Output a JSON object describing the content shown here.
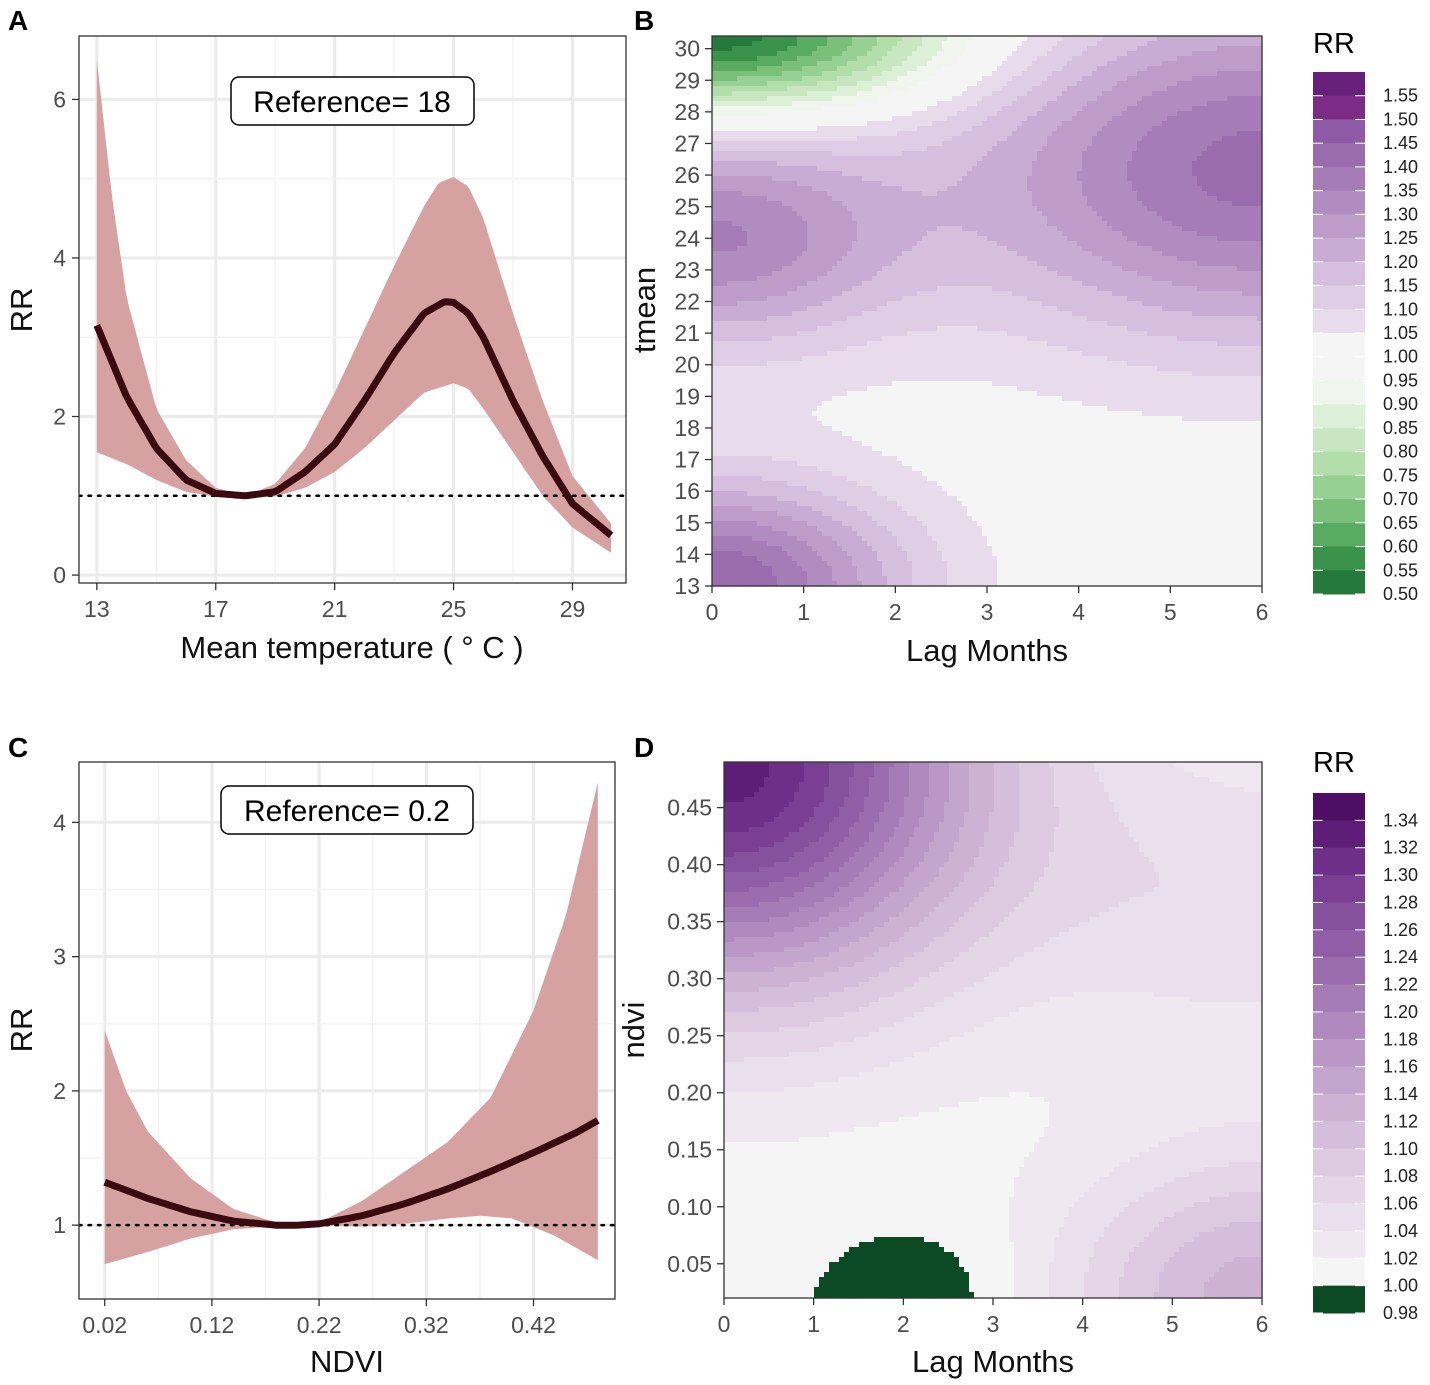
{
  "panels": {
    "A": {
      "label": "A",
      "chart_data": {
        "type": "line",
        "title": "",
        "annotation": "Reference= 18",
        "xlabel": "Mean temperature ( ° C )",
        "ylabel": "RR",
        "xlim": [
          12.4,
          30.8
        ],
        "ylim": [
          -0.1,
          6.8
        ],
        "x_ticks": [
          13,
          17,
          21,
          25,
          29
        ],
        "y_ticks": [
          0,
          2,
          4,
          6
        ],
        "x_tick_labels": [
          "13",
          "17",
          "21",
          "25",
          "29"
        ],
        "y_tick_labels": [
          "0",
          "2",
          "4",
          "6"
        ],
        "reference_line_y": 1,
        "series": [
          {
            "name": "RR",
            "x": [
              13,
              14,
              15,
              16,
              17,
              18,
              19,
              20,
              21,
              22,
              23,
              24,
              24.7,
              25,
              25.5,
              26,
              27,
              28,
              29,
              30.3
            ],
            "values": [
              3.15,
              2.25,
              1.6,
              1.2,
              1.03,
              1.0,
              1.05,
              1.3,
              1.65,
              2.2,
              2.8,
              3.3,
              3.45,
              3.44,
              3.3,
              3.0,
              2.2,
              1.5,
              0.9,
              0.5
            ]
          },
          {
            "name": "upper 95% CI",
            "x": [
              13,
              13.5,
              14,
              15,
              16,
              17,
              18,
              19,
              20,
              21,
              22,
              23,
              24,
              24.5,
              25,
              25.5,
              26,
              27,
              28,
              29,
              30.3
            ],
            "values": [
              6.5,
              4.8,
              3.5,
              2.1,
              1.45,
              1.1,
              1.0,
              1.15,
              1.6,
              2.3,
              3.1,
              3.9,
              4.65,
              4.95,
              5.02,
              4.9,
              4.5,
              3.3,
              2.2,
              1.25,
              0.65
            ]
          },
          {
            "name": "lower 95% CI",
            "x": [
              13,
              14,
              15,
              16,
              17,
              18,
              19,
              20,
              21,
              22,
              23,
              24,
              25,
              25.5,
              26,
              27,
              28,
              29,
              30.3
            ],
            "values": [
              1.55,
              1.4,
              1.2,
              1.05,
              0.99,
              0.98,
              0.99,
              1.1,
              1.3,
              1.6,
              1.95,
              2.3,
              2.42,
              2.35,
              2.1,
              1.55,
              1.0,
              0.6,
              0.28
            ]
          }
        ]
      }
    },
    "B": {
      "label": "B",
      "chart_data": {
        "type": "heatmap",
        "title": "",
        "xlabel": "Lag Months",
        "ylabel": "tmean",
        "xlim": [
          0,
          6
        ],
        "ylim": [
          13,
          30.4
        ],
        "x_ticks": [
          0,
          1,
          2,
          3,
          4,
          5,
          6
        ],
        "y_ticks": [
          13,
          14,
          15,
          16,
          17,
          18,
          19,
          20,
          21,
          22,
          23,
          24,
          25,
          26,
          27,
          28,
          29,
          30
        ],
        "x_tick_labels": [
          "0",
          "1",
          "2",
          "3",
          "4",
          "5",
          "6"
        ],
        "y_tick_labels": [
          "13",
          "14",
          "15",
          "16",
          "17",
          "18",
          "19",
          "20",
          "21",
          "22",
          "23",
          "24",
          "25",
          "26",
          "27",
          "28",
          "29",
          "30"
        ],
        "legend_title": "RR",
        "legend_breaks": [
          0.5,
          0.55,
          0.6,
          0.65,
          0.7,
          0.75,
          0.8,
          0.85,
          0.9,
          0.95,
          1.0,
          1.05,
          1.1,
          1.15,
          1.2,
          1.25,
          1.3,
          1.35,
          1.4,
          1.45,
          1.5,
          1.55
        ],
        "legend_labels": [
          "1.55",
          "1.50",
          "1.45",
          "1.40",
          "1.35",
          "1.30",
          "1.25",
          "1.20",
          "1.15",
          "1.10",
          "1.05",
          "1.00",
          "0.95",
          "0.90",
          "0.85",
          "0.80",
          "0.75",
          "0.70",
          "0.65",
          "0.60",
          "0.55",
          "0.50"
        ],
        "features": [
          {
            "center": [
              0,
              30.4
            ],
            "peak_rr": 0.5,
            "spread_lag": 2.6,
            "spread_var": 2.4,
            "note": "green dip at high tmean, short lag"
          },
          {
            "center": [
              0,
              24
            ],
            "peak_rr": 1.34,
            "spread_lag": 2.0,
            "spread_var": 3.5
          },
          {
            "center": [
              0,
              13
            ],
            "peak_rr": 1.45,
            "spread_lag": 2.1,
            "spread_var": 3.3
          },
          {
            "center": [
              6,
              26.2
            ],
            "peak_rr": 1.42,
            "spread_lag": 3.4,
            "spread_var": 5.5
          }
        ]
      }
    },
    "C": {
      "label": "C",
      "chart_data": {
        "type": "line",
        "title": "",
        "annotation": "Reference= 0.2",
        "xlabel": "NDVI",
        "ylabel": "RR",
        "xlim": [
          -0.004,
          0.496
        ],
        "ylim": [
          0.45,
          4.45
        ],
        "x_ticks": [
          0.02,
          0.12,
          0.22,
          0.32,
          0.42
        ],
        "y_ticks": [
          1,
          2,
          3,
          4
        ],
        "x_tick_labels": [
          "0.02",
          "0.12",
          "0.22",
          "0.32",
          "0.42"
        ],
        "y_tick_labels": [
          "1",
          "2",
          "3",
          "4"
        ],
        "reference_line_y": 1,
        "series": [
          {
            "name": "RR",
            "x": [
              0.02,
              0.06,
              0.1,
              0.14,
              0.18,
              0.2,
              0.22,
              0.26,
              0.3,
              0.34,
              0.38,
              0.42,
              0.46,
              0.48
            ],
            "values": [
              1.32,
              1.2,
              1.1,
              1.03,
              1.0,
              1.0,
              1.01,
              1.07,
              1.16,
              1.27,
              1.4,
              1.54,
              1.69,
              1.78
            ]
          },
          {
            "name": "upper 95% CI",
            "x": [
              0.02,
              0.04,
              0.06,
              0.1,
              0.14,
              0.18,
              0.2,
              0.22,
              0.26,
              0.3,
              0.34,
              0.38,
              0.42,
              0.45,
              0.48
            ],
            "values": [
              2.45,
              2.0,
              1.7,
              1.35,
              1.12,
              1.02,
              1.0,
              1.02,
              1.18,
              1.4,
              1.62,
              1.95,
              2.6,
              3.3,
              4.3
            ]
          },
          {
            "name": "lower 95% CI",
            "x": [
              0.02,
              0.06,
              0.1,
              0.14,
              0.18,
              0.2,
              0.22,
              0.26,
              0.3,
              0.34,
              0.37,
              0.4,
              0.44,
              0.48
            ],
            "values": [
              0.71,
              0.8,
              0.9,
              0.97,
              0.99,
              1.0,
              1.0,
              0.99,
              1.01,
              1.05,
              1.07,
              1.05,
              0.92,
              0.74
            ]
          }
        ]
      }
    },
    "D": {
      "label": "D",
      "chart_data": {
        "type": "heatmap",
        "title": "",
        "xlabel": "Lag Months",
        "ylabel": "ndvi",
        "xlim": [
          0,
          6
        ],
        "ylim": [
          0.02,
          0.49
        ],
        "x_ticks": [
          0,
          1,
          2,
          3,
          4,
          5,
          6
        ],
        "y_ticks": [
          0.05,
          0.1,
          0.15,
          0.2,
          0.25,
          0.3,
          0.35,
          0.4,
          0.45
        ],
        "x_tick_labels": [
          "0",
          "1",
          "2",
          "3",
          "4",
          "5",
          "6"
        ],
        "y_tick_labels": [
          "0.05",
          "0.10",
          "0.15",
          "0.20",
          "0.25",
          "0.30",
          "0.35",
          "0.40",
          "0.45"
        ],
        "legend_title": "RR",
        "legend_breaks": [
          0.98,
          1.0,
          1.02,
          1.04,
          1.06,
          1.08,
          1.1,
          1.12,
          1.14,
          1.16,
          1.18,
          1.2,
          1.22,
          1.24,
          1.26,
          1.28,
          1.3,
          1.32,
          1.34
        ],
        "legend_labels": [
          "1.34",
          "1.32",
          "1.30",
          "1.28",
          "1.26",
          "1.24",
          "1.22",
          "1.20",
          "1.18",
          "1.16",
          "1.14",
          "1.12",
          "1.10",
          "1.08",
          "1.06",
          "1.04",
          "1.02",
          "1.00",
          "0.98"
        ],
        "features": [
          {
            "center": [
              0,
              0.49
            ],
            "peak_rr": 1.33,
            "spread_lag": 2.9,
            "spread_var": 0.2
          },
          {
            "center": [
              6,
              0.37
            ],
            "peak_rr": 1.055,
            "spread_lag": 2.6,
            "spread_var": 0.14
          },
          {
            "center": [
              6,
              0.02
            ],
            "peak_rr": 1.13,
            "spread_lag": 2.3,
            "spread_var": 0.13
          },
          {
            "center": [
              2.25,
              0.02
            ],
            "peak_rr": 0.97,
            "spread_lag": 1.05,
            "spread_var": 0.062,
            "note": "green region below 1.00"
          }
        ]
      }
    }
  }
}
